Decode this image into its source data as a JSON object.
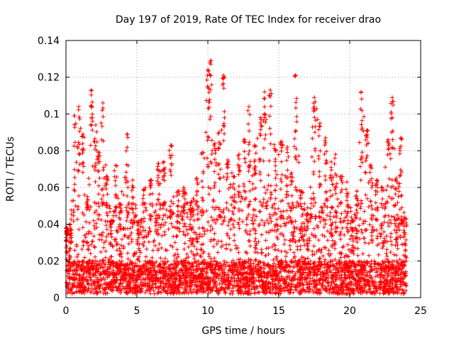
{
  "chart_data": {
    "type": "scatter",
    "title": "Day 197 of 2019, Rate Of TEC Index for receiver drao",
    "xlabel": "GPS time / hours",
    "ylabel": "ROTI / TECUs",
    "xlim": [
      0,
      25
    ],
    "ylim": [
      0,
      0.14
    ],
    "x_ticks": [
      0,
      5,
      10,
      15,
      20,
      25
    ],
    "x_tick_labels": [
      "0",
      "5",
      "10",
      "15",
      "20",
      "25"
    ],
    "y_ticks": [
      0,
      0.02,
      0.04,
      0.06,
      0.08,
      0.1,
      0.12,
      0.14
    ],
    "y_tick_labels": [
      "0",
      "0.02",
      "0.04",
      "0.06",
      "0.08",
      "0.1",
      "0.12",
      "0.14"
    ],
    "grid": true,
    "marker": "plus",
    "color": "#ff0000",
    "peaks": [
      {
        "x": 0.05,
        "y": 0.038
      },
      {
        "x": 0.3,
        "y": 0.04
      },
      {
        "x": 0.6,
        "y": 0.099
      },
      {
        "x": 0.9,
        "y": 0.104
      },
      {
        "x": 1.2,
        "y": 0.089
      },
      {
        "x": 1.5,
        "y": 0.055
      },
      {
        "x": 1.8,
        "y": 0.113
      },
      {
        "x": 2.1,
        "y": 0.094
      },
      {
        "x": 2.3,
        "y": 0.079
      },
      {
        "x": 2.6,
        "y": 0.106
      },
      {
        "x": 2.9,
        "y": 0.066
      },
      {
        "x": 3.2,
        "y": 0.042
      },
      {
        "x": 3.5,
        "y": 0.072
      },
      {
        "x": 3.8,
        "y": 0.051
      },
      {
        "x": 4.3,
        "y": 0.089
      },
      {
        "x": 4.7,
        "y": 0.064
      },
      {
        "x": 5.1,
        "y": 0.041
      },
      {
        "x": 5.5,
        "y": 0.059
      },
      {
        "x": 6.0,
        "y": 0.064
      },
      {
        "x": 6.5,
        "y": 0.073
      },
      {
        "x": 6.9,
        "y": 0.074
      },
      {
        "x": 7.4,
        "y": 0.083
      },
      {
        "x": 7.9,
        "y": 0.058
      },
      {
        "x": 8.3,
        "y": 0.06
      },
      {
        "x": 8.8,
        "y": 0.052
      },
      {
        "x": 9.2,
        "y": 0.065
      },
      {
        "x": 9.6,
        "y": 0.079
      },
      {
        "x": 10.0,
        "y": 0.124
      },
      {
        "x": 10.2,
        "y": 0.129
      },
      {
        "x": 10.5,
        "y": 0.084
      },
      {
        "x": 10.8,
        "y": 0.09
      },
      {
        "x": 11.1,
        "y": 0.121
      },
      {
        "x": 11.4,
        "y": 0.075
      },
      {
        "x": 11.8,
        "y": 0.066
      },
      {
        "x": 12.2,
        "y": 0.078
      },
      {
        "x": 12.6,
        "y": 0.086
      },
      {
        "x": 12.9,
        "y": 0.104
      },
      {
        "x": 13.3,
        "y": 0.083
      },
      {
        "x": 13.7,
        "y": 0.098
      },
      {
        "x": 14.0,
        "y": 0.112
      },
      {
        "x": 14.4,
        "y": 0.113
      },
      {
        "x": 14.8,
        "y": 0.08
      },
      {
        "x": 15.2,
        "y": 0.085
      },
      {
        "x": 15.6,
        "y": 0.082
      },
      {
        "x": 15.9,
        "y": 0.068
      },
      {
        "x": 16.2,
        "y": 0.121
      },
      {
        "x": 16.6,
        "y": 0.058
      },
      {
        "x": 17.0,
        "y": 0.046
      },
      {
        "x": 17.5,
        "y": 0.109
      },
      {
        "x": 17.9,
        "y": 0.095
      },
      {
        "x": 18.3,
        "y": 0.087
      },
      {
        "x": 18.7,
        "y": 0.074
      },
      {
        "x": 19.0,
        "y": 0.078
      },
      {
        "x": 19.4,
        "y": 0.066
      },
      {
        "x": 19.8,
        "y": 0.063
      },
      {
        "x": 20.2,
        "y": 0.042
      },
      {
        "x": 20.5,
        "y": 0.058
      },
      {
        "x": 20.8,
        "y": 0.112
      },
      {
        "x": 21.2,
        "y": 0.091
      },
      {
        "x": 21.5,
        "y": 0.072
      },
      {
        "x": 21.9,
        "y": 0.064
      },
      {
        "x": 22.3,
        "y": 0.06
      },
      {
        "x": 22.7,
        "y": 0.086
      },
      {
        "x": 23.0,
        "y": 0.109
      },
      {
        "x": 23.3,
        "y": 0.065
      },
      {
        "x": 23.6,
        "y": 0.087
      },
      {
        "x": 23.9,
        "y": 0.043
      }
    ]
  }
}
